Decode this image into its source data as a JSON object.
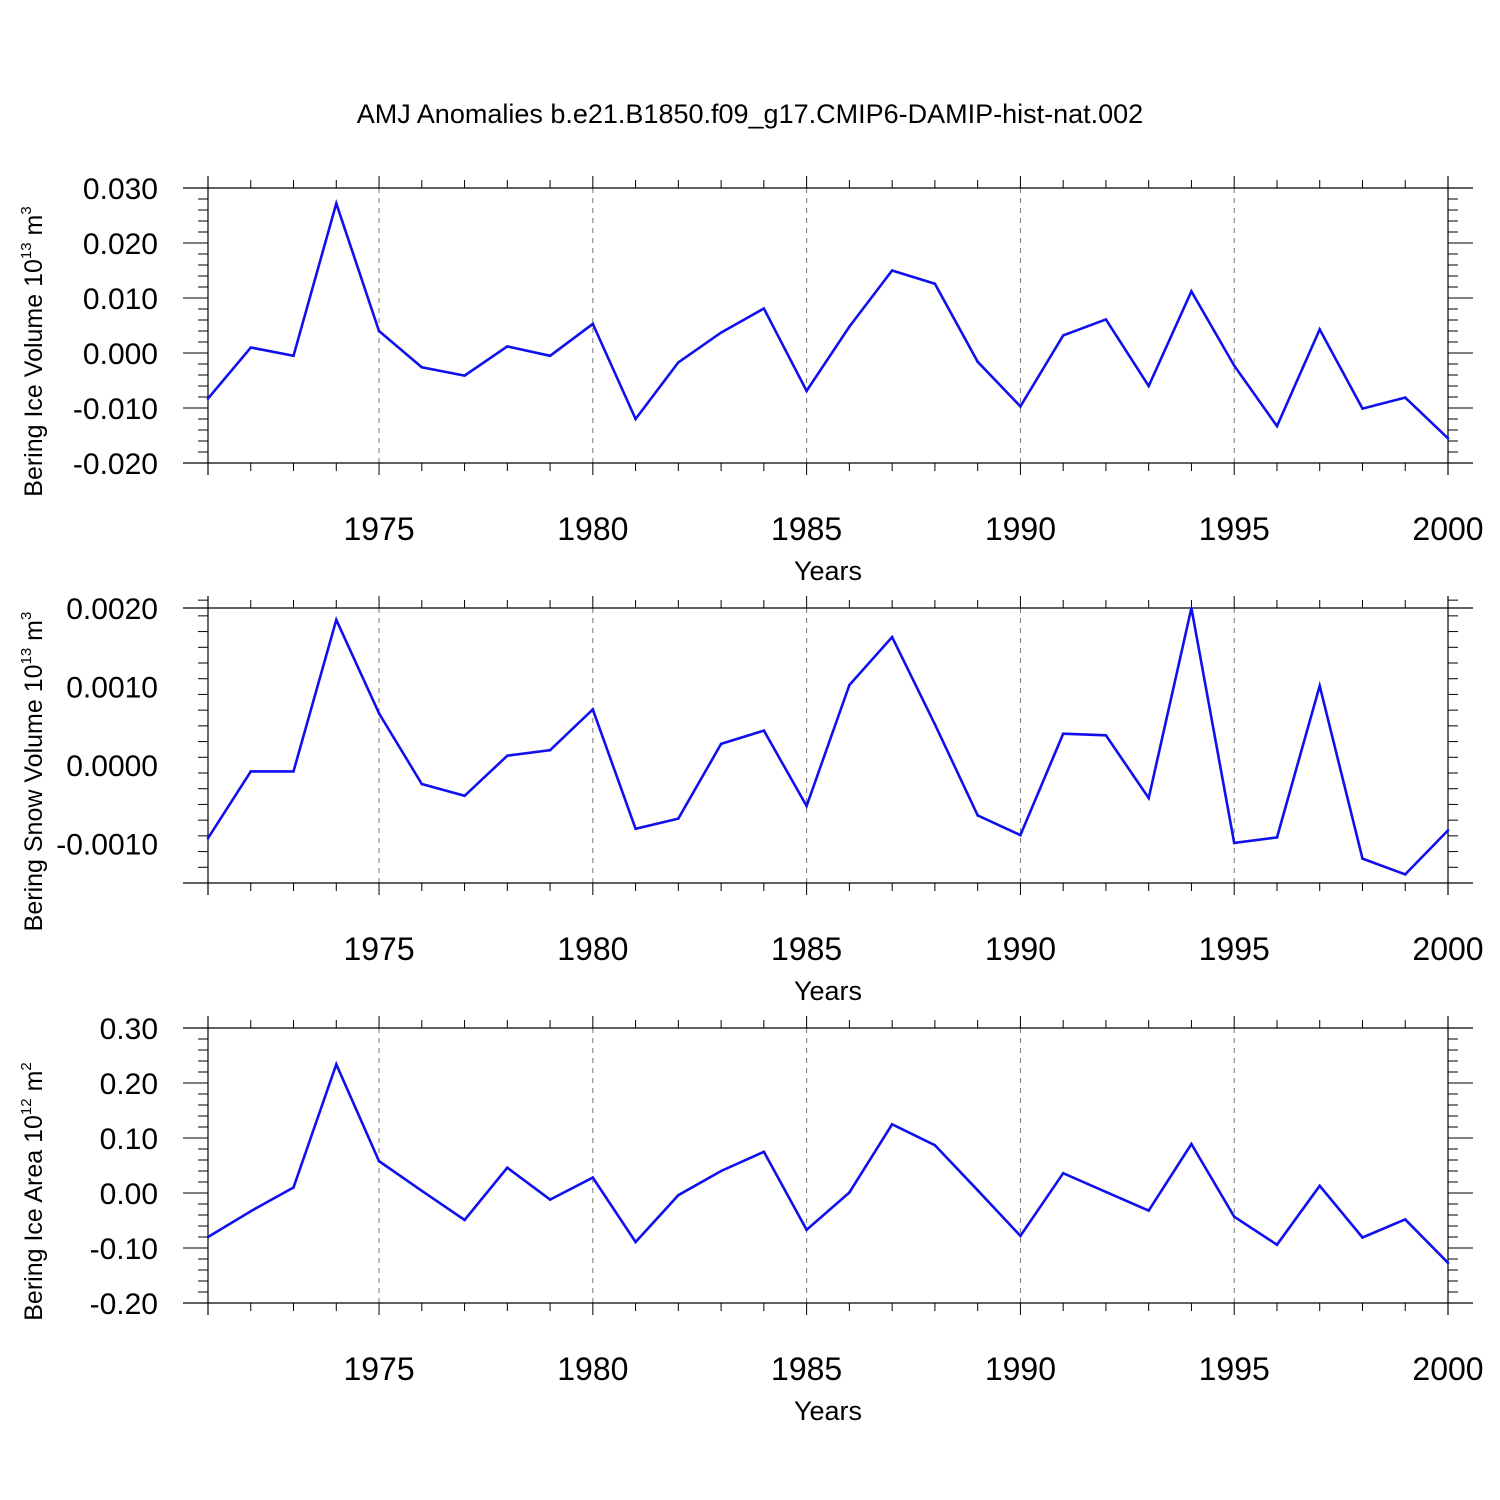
{
  "title": "AMJ Anomalies b.e21.B1850.f09_g17.CMIP6-DAMIP-hist-nat.002",
  "colors": {
    "line": "#1010ee",
    "axis": "#000000",
    "grid": "#777777",
    "background": "#ffffff"
  },
  "chart_data": [
    {
      "type": "line",
      "ylabel": {
        "text": "Bering Ice Volume 10",
        "exp": "13",
        "unit": "m",
        "unit_exp": "3"
      },
      "xlabel": "Years",
      "xlim": [
        1971,
        2000
      ],
      "ylim": [
        -0.02,
        0.03
      ],
      "yticks": [
        -0.02,
        -0.01,
        0.0,
        0.01,
        0.02,
        0.03
      ],
      "ytick_labels": [
        "-0.020",
        "-0.010",
        "0.000",
        "0.010",
        "0.020",
        "0.030"
      ],
      "xticks": [
        1975,
        1980,
        1985,
        1990,
        1995,
        2000
      ],
      "xtick_labels": [
        "1975",
        "1980",
        "1985",
        "1990",
        "1995",
        "2000"
      ],
      "grid": "vertical dashed at labeled x ticks",
      "x": [
        1971,
        1972,
        1973,
        1974,
        1975,
        1976,
        1977,
        1978,
        1979,
        1980,
        1981,
        1982,
        1983,
        1984,
        1985,
        1986,
        1987,
        1988,
        1989,
        1990,
        1991,
        1992,
        1993,
        1994,
        1995,
        1996,
        1997,
        1998,
        1999,
        2000
      ],
      "values": [
        -0.0083,
        0.001,
        -0.0005,
        0.0272,
        0.004,
        -0.0026,
        -0.0041,
        0.0012,
        -0.0005,
        0.0053,
        -0.012,
        -0.0017,
        0.0037,
        0.0081,
        -0.0069,
        0.0048,
        0.015,
        0.0126,
        -0.0016,
        -0.0097,
        0.0032,
        0.0061,
        -0.006,
        0.0112,
        -0.0023,
        -0.0133,
        0.0043,
        -0.0101,
        -0.0081,
        -0.0155
      ]
    },
    {
      "type": "line",
      "ylabel": {
        "text": "Bering Snow Volume 10",
        "exp": "13",
        "unit": "m",
        "unit_exp": "3"
      },
      "xlabel": "Years",
      "xlim": [
        1971,
        2000
      ],
      "ylim": [
        -0.0015,
        0.002
      ],
      "yticks": [
        -0.001,
        0.0,
        0.001,
        0.002
      ],
      "ytick_labels": [
        "-0.0010",
        "0.0000",
        "0.0010",
        "0.0020"
      ],
      "xticks": [
        1975,
        1980,
        1985,
        1990,
        1995,
        2000
      ],
      "xtick_labels": [
        "1975",
        "1980",
        "1985",
        "1990",
        "1995",
        "2000"
      ],
      "grid": "vertical dashed at labeled x ticks",
      "x": [
        1971,
        1972,
        1973,
        1974,
        1975,
        1976,
        1977,
        1978,
        1979,
        1980,
        1981,
        1982,
        1983,
        1984,
        1985,
        1986,
        1987,
        1988,
        1989,
        1990,
        1991,
        1992,
        1993,
        1994,
        1995,
        1996,
        1997,
        1998,
        1999,
        2000
      ],
      "values": [
        -0.00093,
        -8e-05,
        -8e-05,
        0.00185,
        0.00066,
        -0.00024,
        -0.00039,
        0.00012,
        0.00019,
        0.00071,
        -0.00081,
        -0.00068,
        0.00027,
        0.00044,
        -0.00052,
        0.00102,
        0.00163,
        0.00052,
        -0.00064,
        -0.00089,
        0.0004,
        0.00038,
        -0.00042,
        0.002,
        -0.00099,
        -0.00092,
        0.00101,
        -0.00119,
        -0.00139,
        -0.00083
      ]
    },
    {
      "type": "line",
      "ylabel": {
        "text": "Bering Ice Area 10",
        "exp": "12",
        "unit": "m",
        "unit_exp": "2"
      },
      "xlabel": "Years",
      "xlim": [
        1971,
        2000
      ],
      "ylim": [
        -0.2,
        0.3
      ],
      "yticks": [
        -0.2,
        -0.1,
        0.0,
        0.1,
        0.2,
        0.3
      ],
      "ytick_labels": [
        "-0.20",
        "-0.10",
        "0.00",
        "0.10",
        "0.20",
        "0.30"
      ],
      "xticks": [
        1975,
        1980,
        1985,
        1990,
        1995,
        2000
      ],
      "xtick_labels": [
        "1975",
        "1980",
        "1985",
        "1990",
        "1995",
        "2000"
      ],
      "grid": "vertical dashed at labeled x ticks",
      "x": [
        1971,
        1972,
        1973,
        1974,
        1975,
        1976,
        1977,
        1978,
        1979,
        1980,
        1981,
        1982,
        1983,
        1984,
        1985,
        1986,
        1987,
        1988,
        1989,
        1990,
        1991,
        1992,
        1993,
        1994,
        1995,
        1996,
        1997,
        1998,
        1999,
        2000
      ],
      "values": [
        -0.08,
        -0.033,
        0.01,
        0.234,
        0.058,
        0.004,
        -0.049,
        0.046,
        -0.012,
        0.028,
        -0.089,
        -0.004,
        0.04,
        0.075,
        -0.067,
        0.001,
        0.125,
        0.087,
        0.005,
        -0.078,
        0.036,
        0.002,
        -0.032,
        0.089,
        -0.043,
        -0.094,
        0.013,
        -0.081,
        -0.048,
        -0.127
      ]
    }
  ]
}
